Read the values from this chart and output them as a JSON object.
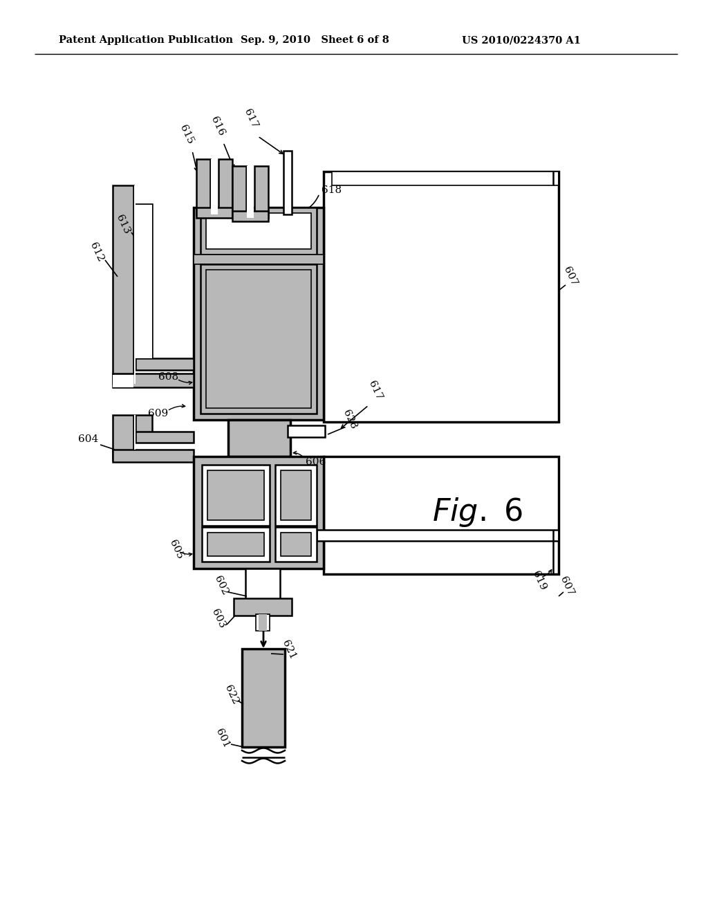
{
  "background": "#ffffff",
  "black": "#000000",
  "gray": "#b8b8b8",
  "dark_line": "#000000",
  "header_left": "Patent Application Publication",
  "header_mid": "Sep. 9, 2010   Sheet 6 of 8",
  "header_right": "US 2010/0224370 A1",
  "fig_label": "Fig. 6",
  "lw_heavy": 2.5,
  "lw_med": 1.8,
  "lw_light": 1.2,
  "label_fs": 11
}
